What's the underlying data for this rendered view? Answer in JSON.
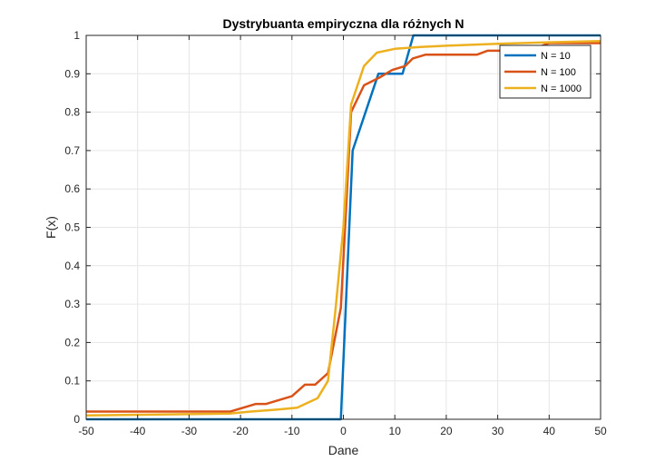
{
  "chart_data": {
    "type": "line",
    "title": "Dystrybuanta empiryczna dla różnych N",
    "xlabel": "Dane",
    "ylabel": "F(x)",
    "xlim": [
      -50,
      50
    ],
    "ylim": [
      0,
      1
    ],
    "xticks": [
      "-50",
      "-40",
      "-30",
      "-20",
      "-10",
      "0",
      "10",
      "20",
      "30",
      "40",
      "50"
    ],
    "yticks": [
      "0",
      "0.1",
      "0.2",
      "0.3",
      "0.4",
      "0.5",
      "0.6",
      "0.7",
      "0.8",
      "0.9",
      "1"
    ],
    "grid": true,
    "legend_position": "top-right",
    "series": [
      {
        "name": "N = 10",
        "color": "#0072BD",
        "points": [
          [
            -50,
            0
          ],
          [
            -0.5,
            0
          ],
          [
            1.8,
            0.7
          ],
          [
            6.8,
            0.9
          ],
          [
            11.5,
            0.9
          ],
          [
            13.6,
            1.0
          ],
          [
            50,
            1.0
          ]
        ]
      },
      {
        "name": "N = 100",
        "color": "#D95319",
        "points": [
          [
            -50,
            0.02
          ],
          [
            -22,
            0.02
          ],
          [
            -17,
            0.04
          ],
          [
            -15,
            0.04
          ],
          [
            -10,
            0.06
          ],
          [
            -7.5,
            0.09
          ],
          [
            -5.5,
            0.09
          ],
          [
            -3,
            0.12
          ],
          [
            -0.5,
            0.29
          ],
          [
            1.5,
            0.8
          ],
          [
            4,
            0.87
          ],
          [
            7,
            0.89
          ],
          [
            9.5,
            0.91
          ],
          [
            12,
            0.92
          ],
          [
            13.5,
            0.94
          ],
          [
            16,
            0.95
          ],
          [
            26,
            0.95
          ],
          [
            28,
            0.96
          ],
          [
            31,
            0.96
          ],
          [
            38,
            0.97
          ],
          [
            40,
            0.98
          ],
          [
            50,
            0.98
          ]
        ]
      },
      {
        "name": "N = 1000",
        "color": "#EDB120",
        "points": [
          [
            -50,
            0.01
          ],
          [
            -22,
            0.015
          ],
          [
            -18,
            0.02
          ],
          [
            -13,
            0.025
          ],
          [
            -9,
            0.03
          ],
          [
            -5,
            0.055
          ],
          [
            -3,
            0.1
          ],
          [
            -1.5,
            0.29
          ],
          [
            0,
            0.5
          ],
          [
            1.5,
            0.82
          ],
          [
            4,
            0.92
          ],
          [
            6.5,
            0.955
          ],
          [
            10,
            0.965
          ],
          [
            15,
            0.97
          ],
          [
            20,
            0.973
          ],
          [
            30,
            0.978
          ],
          [
            40,
            0.982
          ],
          [
            50,
            0.985
          ]
        ]
      }
    ]
  }
}
